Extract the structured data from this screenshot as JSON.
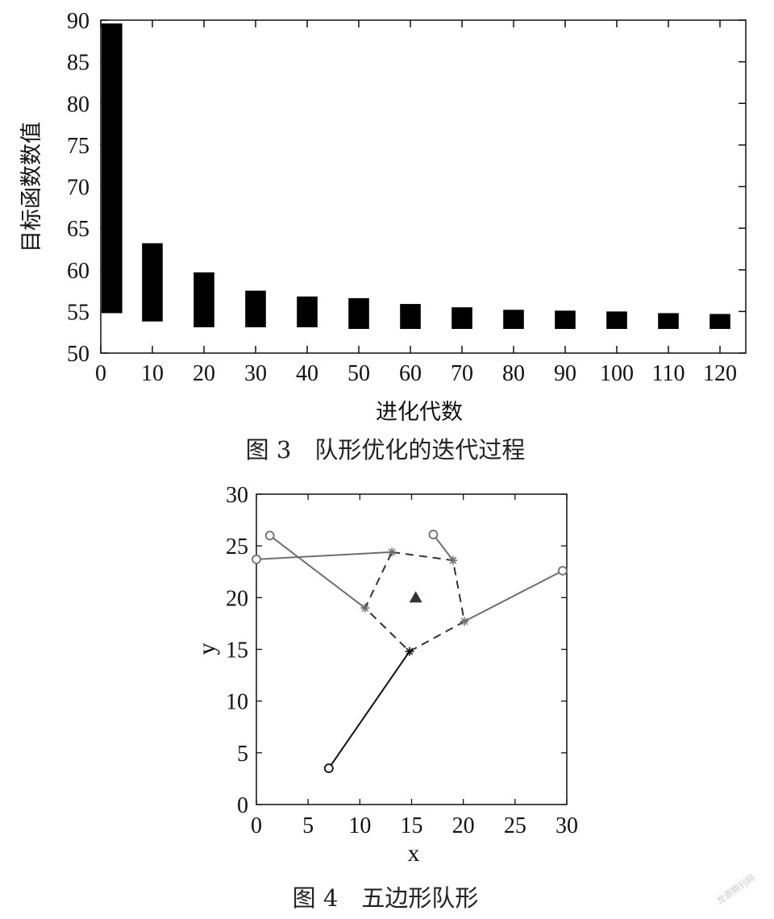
{
  "chart_data": [
    {
      "type": "bar",
      "xlabel": "进化代数",
      "ylabel": "目标函数数值",
      "xlim": [
        0,
        125
      ],
      "ylim": [
        50,
        90
      ],
      "x_ticks": [
        0,
        10,
        20,
        30,
        40,
        50,
        60,
        70,
        80,
        90,
        100,
        110,
        120
      ],
      "y_ticks": [
        50,
        55,
        60,
        65,
        70,
        75,
        80,
        85,
        90
      ],
      "bars": [
        {
          "x": 2,
          "low": 54.8,
          "high": 89.6
        },
        {
          "x": 10,
          "low": 53.8,
          "high": 63.2
        },
        {
          "x": 20,
          "low": 53.1,
          "high": 59.7
        },
        {
          "x": 30,
          "low": 53.1,
          "high": 57.5
        },
        {
          "x": 40,
          "low": 53.1,
          "high": 56.8
        },
        {
          "x": 50,
          "low": 52.9,
          "high": 56.6
        },
        {
          "x": 60,
          "low": 52.9,
          "high": 55.9
        },
        {
          "x": 70,
          "low": 52.9,
          "high": 55.5
        },
        {
          "x": 80,
          "low": 52.9,
          "high": 55.2
        },
        {
          "x": 90,
          "low": 52.9,
          "high": 55.1
        },
        {
          "x": 100,
          "low": 52.9,
          "high": 55.0
        },
        {
          "x": 110,
          "low": 52.9,
          "high": 54.8
        },
        {
          "x": 120,
          "low": 52.9,
          "high": 54.7
        }
      ],
      "caption": "图 3　队形优化的迭代过程",
      "grid": false
    },
    {
      "type": "line",
      "xlabel": "x",
      "ylabel": "y",
      "xlim": [
        0,
        30
      ],
      "ylim": [
        0,
        30
      ],
      "x_ticks": [
        0,
        5,
        10,
        15,
        20,
        25,
        30
      ],
      "y_ticks": [
        0,
        5,
        10,
        15,
        20,
        25,
        30
      ],
      "center": {
        "x": 15.4,
        "y": 20.0,
        "marker": "triangle"
      },
      "pentagon": [
        {
          "x": 13.1,
          "y": 24.4
        },
        {
          "x": 19.0,
          "y": 23.6
        },
        {
          "x": 20.1,
          "y": 17.7
        },
        {
          "x": 14.8,
          "y": 14.8
        },
        {
          "x": 10.5,
          "y": 19.0
        }
      ],
      "paths": [
        {
          "from": {
            "x": 0.0,
            "y": 23.7
          },
          "to": {
            "x": 13.1,
            "y": 24.4
          },
          "color": "#6e6e6e"
        },
        {
          "from": {
            "x": 17.1,
            "y": 26.1
          },
          "to": {
            "x": 19.0,
            "y": 23.6
          },
          "color": "#6e6e6e"
        },
        {
          "from": {
            "x": 29.6,
            "y": 22.6
          },
          "to": {
            "x": 20.1,
            "y": 17.7
          },
          "color": "#6e6e6e"
        },
        {
          "from": {
            "x": 7.0,
            "y": 3.5
          },
          "to": {
            "x": 14.8,
            "y": 14.8
          },
          "color": "#111111"
        },
        {
          "from": {
            "x": 1.3,
            "y": 26.0
          },
          "to": {
            "x": 10.5,
            "y": 19.0
          },
          "color": "#6e6e6e"
        }
      ],
      "caption": "图 4　五边形队形",
      "grid": false
    }
  ],
  "watermark": "龙源期刊网"
}
